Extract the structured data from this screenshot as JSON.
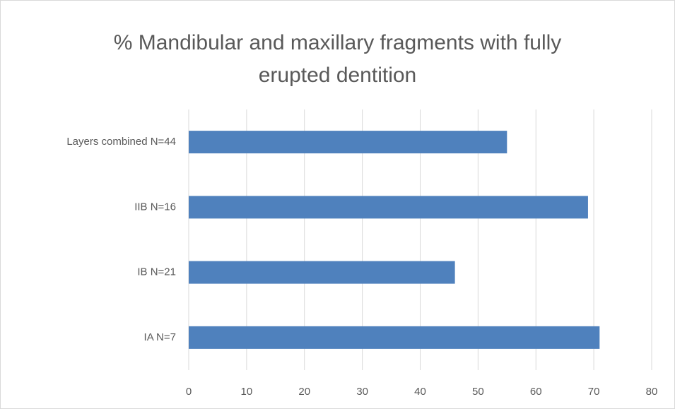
{
  "chart_data": {
    "type": "hbar",
    "title": "% Mandibular and maxillary fragments with fully erupted dentition",
    "categories": [
      "Layers combined N=44",
      "IIB N=16",
      "IB N=21",
      "IA N=7"
    ],
    "values": [
      55,
      69,
      46,
      71
    ],
    "color": "#4f81bd",
    "xlim": [
      0,
      80
    ],
    "xticks": [
      0,
      10,
      20,
      30,
      40,
      50,
      60,
      70,
      80
    ],
    "grid": true
  }
}
